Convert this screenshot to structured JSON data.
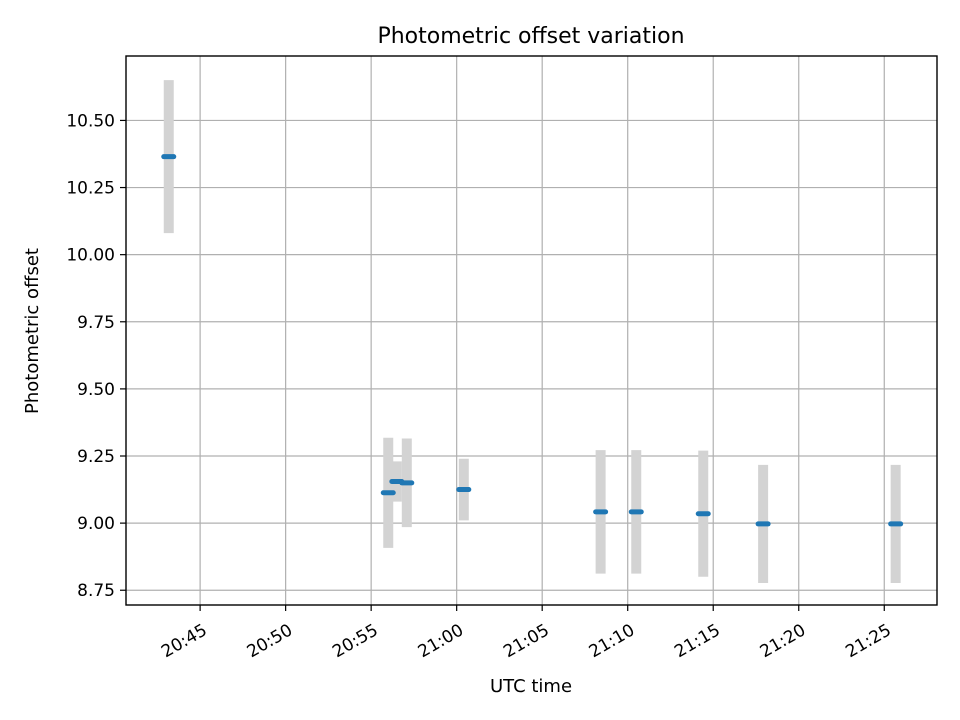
{
  "chart_data": {
    "type": "scatter",
    "title": "Photometric offset variation",
    "xlabel": "UTC time",
    "ylabel": "Photometric offset",
    "x_axis_type": "time",
    "xlim": [
      "20:40:40",
      "21:28:05"
    ],
    "ylim": [
      8.695,
      10.74
    ],
    "x_ticks": [
      "20:45",
      "20:50",
      "20:55",
      "21:00",
      "21:05",
      "21:10",
      "21:15",
      "21:20",
      "21:25"
    ],
    "y_ticks": [
      "8.75",
      "9.00",
      "9.25",
      "9.50",
      "9.75",
      "10.00",
      "10.25",
      "10.50"
    ],
    "grid": true,
    "marker_color": "#1f77b4",
    "errorbar_color": "#d3d3d3",
    "series": [
      {
        "points": [
          {
            "time": "20:43:10",
            "value": 10.365,
            "err": 0.285
          },
          {
            "time": "20:56:00",
            "value": 9.113,
            "err": 0.205
          },
          {
            "time": "20:56:30",
            "value": 9.155,
            "err": 0.075
          },
          {
            "time": "20:57:05",
            "value": 9.15,
            "err": 0.165
          },
          {
            "time": "21:00:25",
            "value": 9.125,
            "err": 0.115
          },
          {
            "time": "21:08:25",
            "value": 9.042,
            "err": 0.23
          },
          {
            "time": "21:10:30",
            "value": 9.042,
            "err": 0.23
          },
          {
            "time": "21:14:25",
            "value": 9.035,
            "err": 0.235
          },
          {
            "time": "21:17:55",
            "value": 8.997,
            "err": 0.22
          },
          {
            "time": "21:25:40",
            "value": 8.997,
            "err": 0.22
          }
        ]
      }
    ]
  }
}
